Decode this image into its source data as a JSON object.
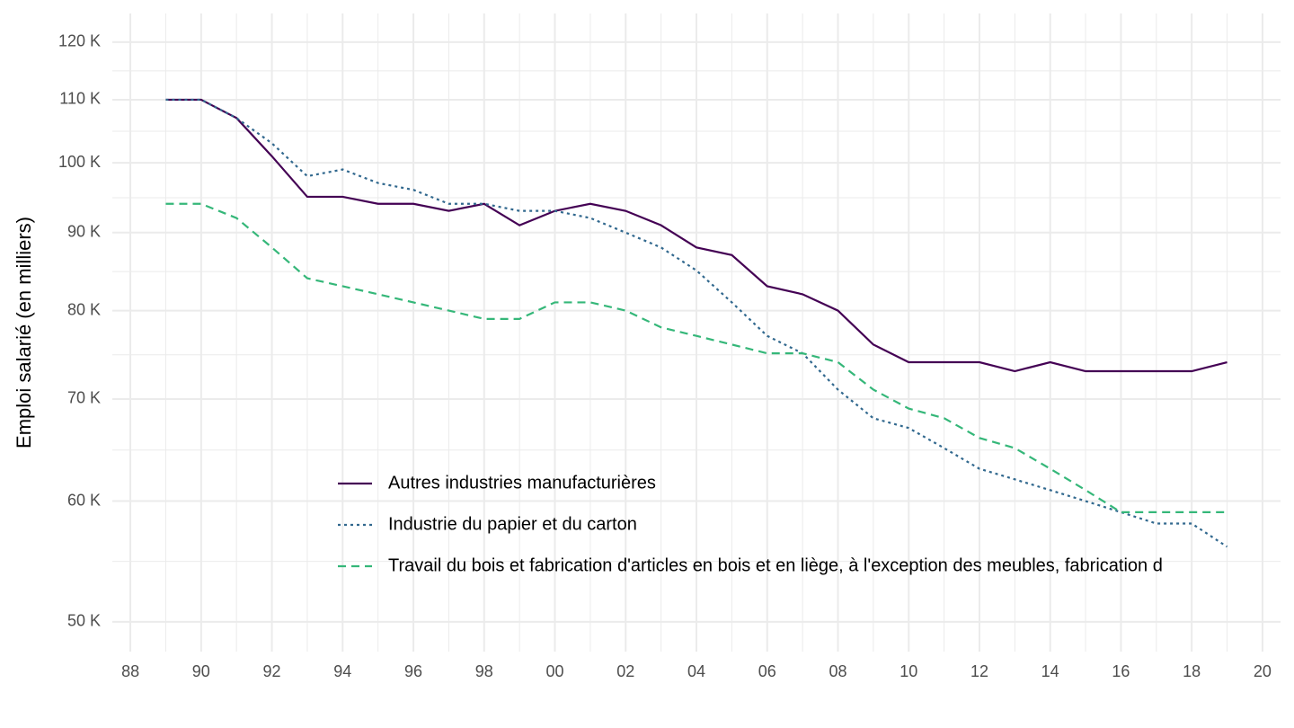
{
  "chart_data": {
    "type": "line",
    "y_label": "Emploi salarié (en milliers)",
    "log_y": true,
    "grid": true,
    "legend_position": "inside-bottom",
    "x": [
      1989,
      1990,
      1991,
      1992,
      1993,
      1994,
      1995,
      1996,
      1997,
      1998,
      1999,
      2000,
      2001,
      2002,
      2003,
      2004,
      2005,
      2006,
      2007,
      2008,
      2009,
      2010,
      2011,
      2012,
      2013,
      2014,
      2015,
      2016,
      2017,
      2018,
      2019
    ],
    "xlim": [
      1987.49,
      2020.51
    ],
    "xticks": [
      {
        "value": 1988,
        "label": "88"
      },
      {
        "value": 1990,
        "label": "90"
      },
      {
        "value": 1992,
        "label": "92"
      },
      {
        "value": 1994,
        "label": "94"
      },
      {
        "value": 1996,
        "label": "96"
      },
      {
        "value": 1998,
        "label": "98"
      },
      {
        "value": 2000,
        "label": "00"
      },
      {
        "value": 2002,
        "label": "02"
      },
      {
        "value": 2004,
        "label": "04"
      },
      {
        "value": 2006,
        "label": "06"
      },
      {
        "value": 2008,
        "label": "08"
      },
      {
        "value": 2010,
        "label": "10"
      },
      {
        "value": 2012,
        "label": "12"
      },
      {
        "value": 2014,
        "label": "14"
      },
      {
        "value": 2016,
        "label": "16"
      },
      {
        "value": 2018,
        "label": "18"
      },
      {
        "value": 2020,
        "label": "20"
      }
    ],
    "ylim": [
      47.8,
      125.3
    ],
    "yticks": [
      {
        "value": 50,
        "label": "50 K"
      },
      {
        "value": 60,
        "label": "60 K"
      },
      {
        "value": 70,
        "label": "70 K"
      },
      {
        "value": 80,
        "label": "80 K"
      },
      {
        "value": 90,
        "label": "90 K"
      },
      {
        "value": 100,
        "label": "100 K"
      },
      {
        "value": 110,
        "label": "110 K"
      },
      {
        "value": 120,
        "label": "120 K"
      }
    ],
    "series": [
      {
        "name": "Autres industries manufacturières",
        "color": "#440154",
        "dash": "solid",
        "values": [
          110,
          110,
          107,
          101,
          95,
          95,
          94,
          94,
          93,
          94,
          91,
          93,
          94,
          93,
          91,
          88,
          87,
          83,
          82,
          80,
          76,
          74,
          74,
          74,
          73,
          74,
          73,
          73,
          73,
          73,
          74
        ]
      },
      {
        "name": "Industrie du papier et du carton",
        "color": "#31688e",
        "dash": "dotted",
        "values": [
          110,
          110,
          107,
          103,
          98,
          99,
          97,
          96,
          94,
          94,
          93,
          93,
          92,
          90,
          88,
          85,
          81,
          77,
          75,
          71,
          68,
          67,
          65,
          63,
          62,
          61,
          60,
          59,
          58,
          58,
          56
        ]
      },
      {
        "name": "Travail du bois et fabrication d'articles en bois et en liège, à l'exception des meubles, fabrication d",
        "color": "#35b779",
        "dash": "dashed",
        "values": [
          94,
          94,
          92,
          88,
          84,
          83,
          82,
          81,
          80,
          79,
          79,
          81,
          81,
          80,
          78,
          77,
          76,
          75,
          75,
          74,
          71,
          69,
          68,
          66,
          65,
          63,
          61,
          59,
          59,
          59,
          59
        ]
      }
    ]
  }
}
